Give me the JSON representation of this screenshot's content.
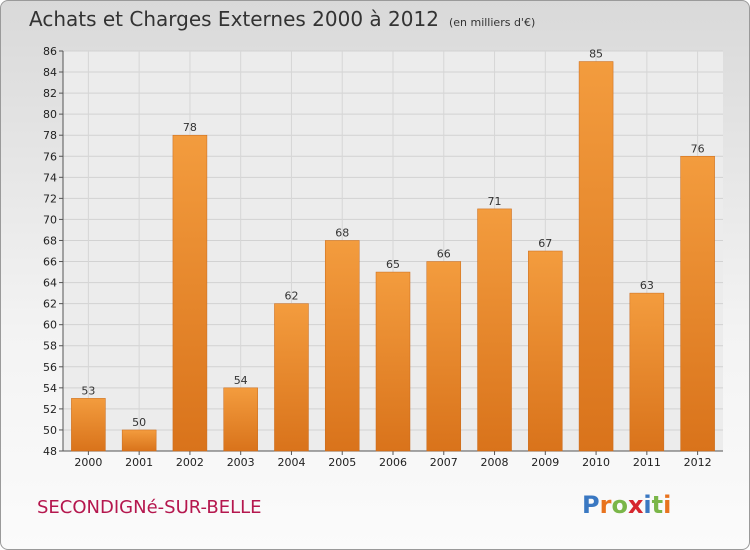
{
  "title": "Achats et Charges Externes 2000 à 2012",
  "unit": "(en milliers d'€)",
  "commune": "SECONDIGNé-SUR-BELLE",
  "logo": {
    "letters": [
      "P",
      "r",
      "o",
      "x",
      "i",
      "t",
      "i"
    ],
    "colors": [
      "#3a78c2",
      "#e8731e",
      "#7ab648",
      "#d6262e",
      "#3a78c2",
      "#7ab648",
      "#e8731e"
    ]
  },
  "chart_data": {
    "type": "bar",
    "categories": [
      "2000",
      "2001",
      "2002",
      "2003",
      "2004",
      "2005",
      "2006",
      "2007",
      "2008",
      "2009",
      "2010",
      "2011",
      "2012"
    ],
    "values": [
      53,
      50,
      78,
      54,
      62,
      68,
      65,
      66,
      71,
      67,
      85,
      63,
      76
    ],
    "ylim": [
      48,
      86
    ],
    "yticks": [
      48,
      50,
      52,
      54,
      56,
      58,
      60,
      62,
      64,
      66,
      68,
      70,
      72,
      74,
      76,
      78,
      80,
      82,
      84,
      86
    ],
    "grid": true,
    "bar_color": "#f39c3e",
    "bar_color_dark": "#d9731b"
  }
}
